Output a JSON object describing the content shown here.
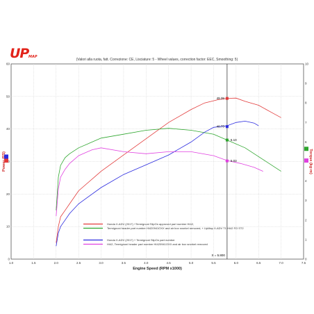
{
  "logo": {
    "main": "UP",
    "sub": "MAP"
  },
  "chart_data": {
    "type": "line",
    "title": "(Valori alla ruota, fatt. Correzione: CE, Lisciature: 5 - Wheel values, correction factor: EEC, Smoothing: 5)",
    "xlabel": "Engine Speed (RPM x1000)",
    "ylabel_left": "Power (PS)",
    "ylabel_right": "Torque (kg·m)",
    "xlim": [
      1.0,
      7.5
    ],
    "ylim_left": [
      0,
      60
    ],
    "ylim_right": [
      0,
      10
    ],
    "x_ticks": [
      "1.0",
      "1.5",
      "2.0",
      "2.5",
      "3.0",
      "3.5",
      "4.0",
      "4.5",
      "5.0",
      "5.5",
      "6.0",
      "6.5",
      "7.0",
      "7.5"
    ],
    "y_ticks_left": [
      "0",
      "10",
      "20",
      "30",
      "40",
      "50",
      "60"
    ],
    "y_ticks_right": [
      "0",
      "1",
      "2",
      "3",
      "4",
      "5",
      "6",
      "7",
      "8",
      "9",
      "10"
    ],
    "grid": true,
    "cursor": {
      "x": 5.8,
      "label": "X = 5.800"
    },
    "series": [
      {
        "axis": "left",
        "color": "#e23a3a",
        "x": [
          2.0,
          2.05,
          2.1,
          2.2,
          2.3,
          2.5,
          3.0,
          3.5,
          4.0,
          4.5,
          5.0,
          5.3,
          5.6,
          5.8,
          6.0,
          6.2,
          6.5,
          6.8,
          7.0
        ],
        "values": [
          5,
          10,
          13,
          15,
          17,
          21,
          27,
          32,
          37,
          42,
          46,
          48,
          49,
          49.4,
          49.5,
          48.5,
          47.3,
          45,
          43.5
        ]
      },
      {
        "axis": "right",
        "color": "#2ea62e",
        "x": [
          2.0,
          2.05,
          2.1,
          2.2,
          2.3,
          2.5,
          2.8,
          3.0,
          3.5,
          4.0,
          4.5,
          5.0,
          5.5,
          5.8,
          6.2,
          6.6,
          7.0
        ],
        "values": [
          2.5,
          4.2,
          4.8,
          5.2,
          5.4,
          5.7,
          6.0,
          6.2,
          6.4,
          6.6,
          6.7,
          6.6,
          6.4,
          6.1,
          5.7,
          5.1,
          4.5
        ]
      },
      {
        "axis": "left",
        "color": "#2a2adf",
        "x": [
          2.0,
          2.05,
          2.1,
          2.2,
          2.3,
          2.5,
          3.0,
          3.5,
          4.0,
          4.5,
          5.0,
          5.3,
          5.5,
          5.8,
          6.0,
          6.2,
          6.4,
          6.5
        ],
        "values": [
          4,
          8,
          10,
          12,
          14,
          17,
          22,
          26,
          29,
          32,
          36,
          39,
          40.5,
          41,
          42,
          42.4,
          41.8,
          41
        ]
      },
      {
        "axis": "right",
        "color": "#e040e0",
        "x": [
          2.0,
          2.05,
          2.1,
          2.2,
          2.3,
          2.5,
          2.8,
          3.0,
          3.5,
          4.0,
          4.5,
          5.0,
          5.5,
          5.8,
          6.1,
          6.4,
          6.6
        ],
        "values": [
          2.2,
          3.6,
          4.2,
          4.6,
          4.9,
          5.3,
          5.6,
          5.7,
          5.5,
          5.4,
          5.5,
          5.5,
          5.3,
          5.05,
          4.9,
          4.7,
          4.5
        ]
      }
    ],
    "markers": [
      {
        "label": "49.39",
        "axis": "left",
        "y": 49.39,
        "color": "#e23a3a",
        "side": "left"
      },
      {
        "label": "40.73",
        "axis": "left",
        "y": 40.73,
        "color": "#2a2adf",
        "side": "left"
      },
      {
        "label": "6.10",
        "axis": "right",
        "y": 6.1,
        "color": "#2ea62e",
        "side": "right"
      },
      {
        "label": "5.03",
        "axis": "right",
        "y": 5.03,
        "color": "#e040e0",
        "side": "right"
      }
    ],
    "side_markers_left": [
      {
        "color": "#e23a3a",
        "y": 0.495
      },
      {
        "color": "#2a2adf",
        "y": 0.475
      }
    ],
    "side_markers_right": [
      {
        "color": "#e040e0",
        "y": 0.495
      },
      {
        "color": "#2ea62e",
        "y": 0.435
      }
    ],
    "legend": {
      "position": "bottom-center",
      "entries": [
        {
          "color": "#e23a3a",
          "text": "Honda X-ADV (2017) +Termignoni SlipOn approved part number HI42,"
        },
        {
          "color": "#2ea62e",
          "text": "Termignoni header part number HI420941OXX and air box snorkel removed, + UpMap X-ADV T1 HI42 FO ST2"
        },
        {
          "color": "#2a2adf",
          "text": "Honda X-ADV (2017) + Termignoni SlipOn part number"
        },
        {
          "color": "#e040e0",
          "text": "HI42, Termignoni header part number HI420941OXX and air box snorkel removed"
        }
      ]
    }
  }
}
